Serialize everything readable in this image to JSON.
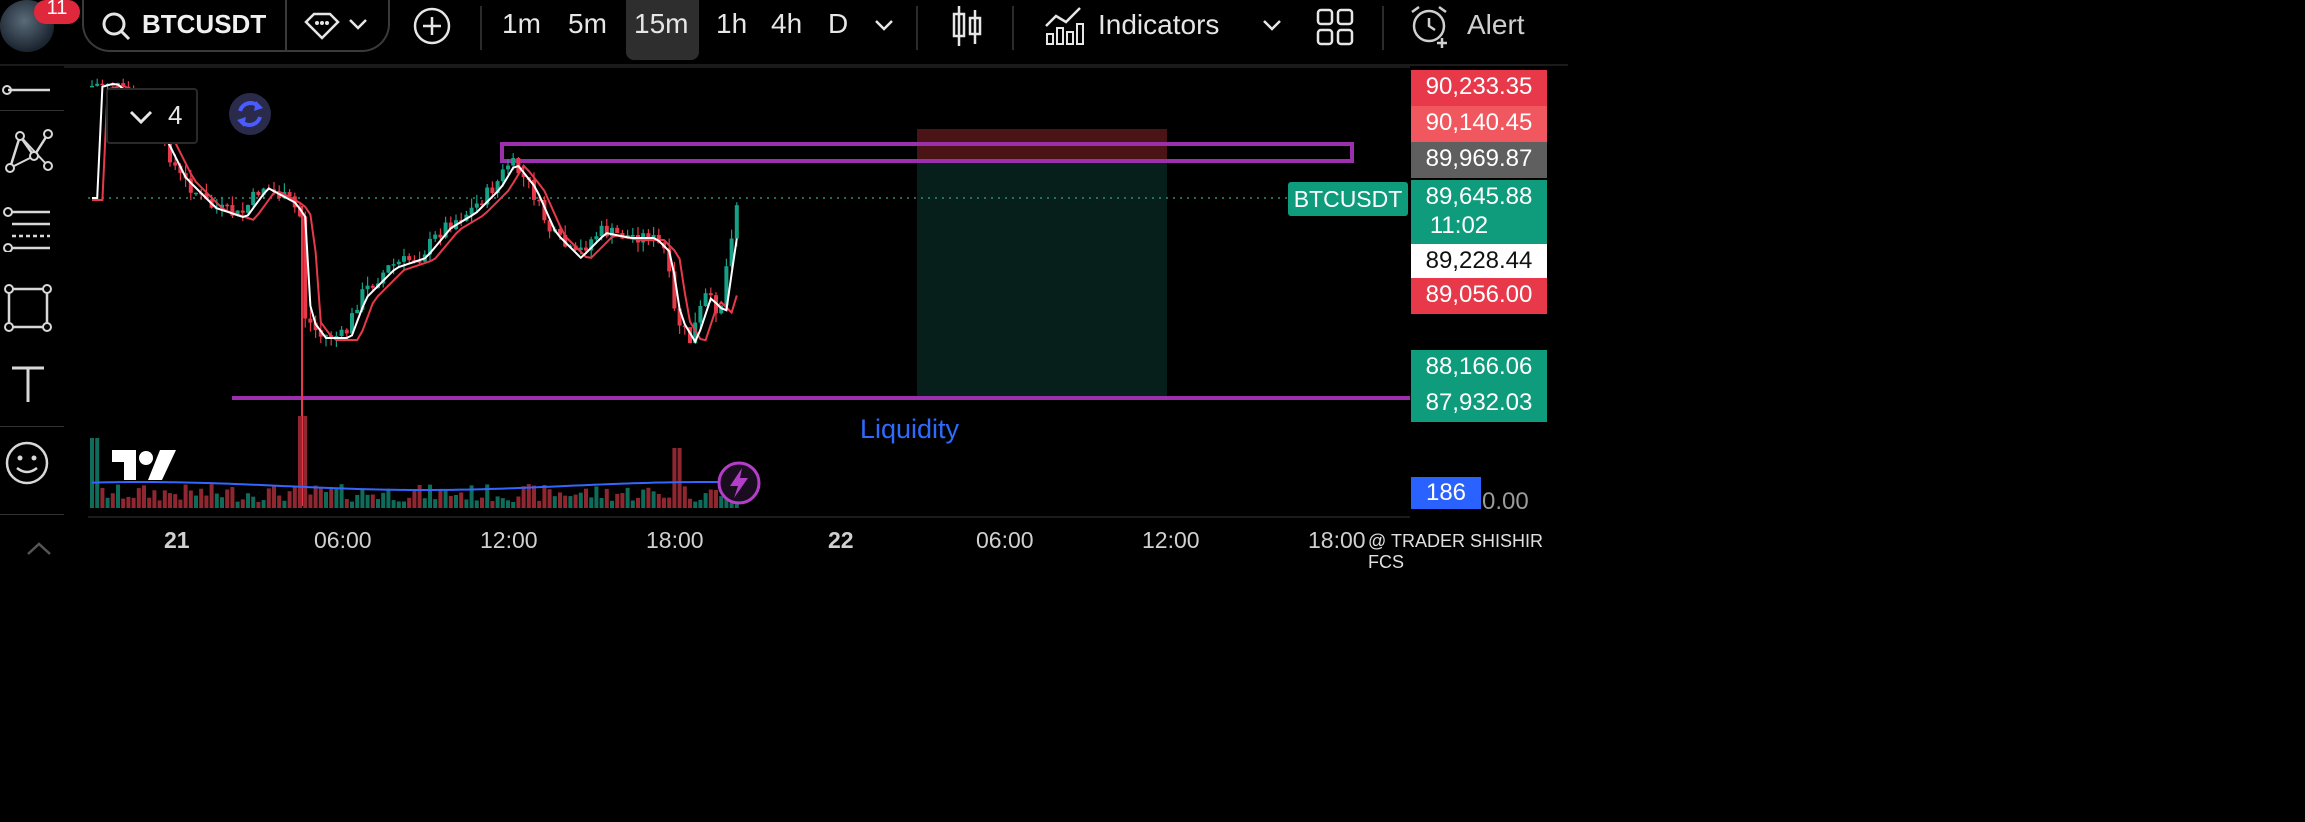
{
  "header": {
    "notification_count": "11",
    "symbol": "BTCUSDT",
    "intervals": [
      "1m",
      "5m",
      "15m",
      "1h",
      "4h",
      "D"
    ],
    "active_interval": "15m",
    "indicators_label": "Indicators",
    "alert_label": "Alert"
  },
  "chart_overlay": {
    "indicator_count": "4",
    "symbol_label": "BTCUSDT",
    "liquidity_label": "Liquidity",
    "watermark": "@ TRADER SHISHIR FCS"
  },
  "price_axis": {
    "labels": [
      {
        "value": "90,233.35",
        "style": "red"
      },
      {
        "value": "90,140.45",
        "style": "lightred"
      },
      {
        "value": "89,969.87",
        "style": "gray"
      },
      {
        "value": "89,645.88",
        "countdown": "11:02",
        "style": "green"
      },
      {
        "value": "89,228.44",
        "style": "white"
      },
      {
        "value": "89,056.00",
        "style": "red"
      },
      {
        "value": "88,166.06",
        "style": "green"
      },
      {
        "value": "87,932.03",
        "style": "green"
      }
    ],
    "volume_value": "186",
    "volume_axis_label": "0.00"
  },
  "time_axis": [
    "21",
    "06:00",
    "12:00",
    "18:00",
    "22",
    "06:00",
    "12:00",
    "18:00"
  ],
  "colors": {
    "up": "#16a085",
    "down": "#e8394b",
    "accent": "#9b2fae",
    "ema_red": "#e8394b",
    "ema_white": "#ffffff",
    "liquidity_text": "#2d6bff"
  }
}
